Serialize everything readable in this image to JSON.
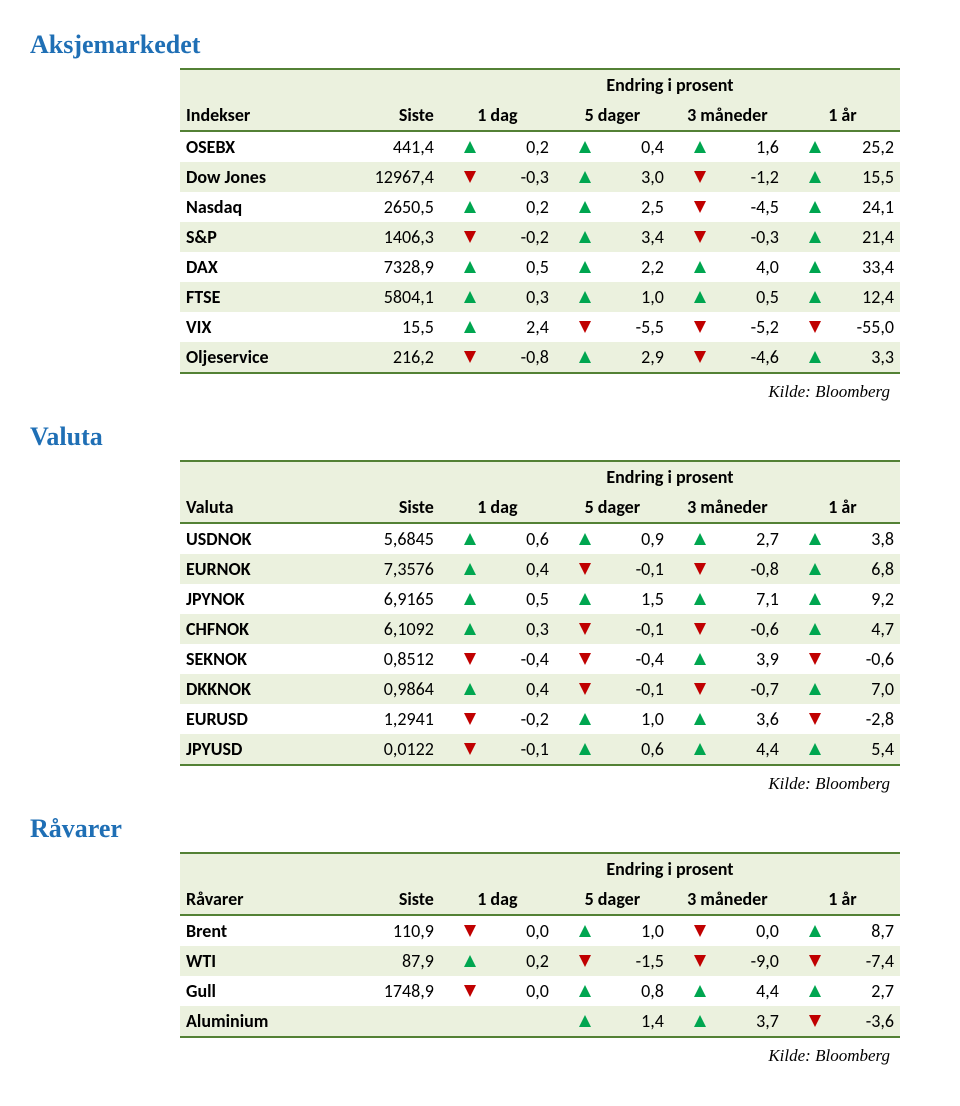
{
  "sections": [
    {
      "title": "Aksjemarkedet",
      "group_header": "Endring i prosent",
      "header_name": "Indekser",
      "header_siste": "Siste",
      "columns": [
        "1 dag",
        "5 dager",
        "3 måneder",
        "1 år"
      ],
      "rows": [
        {
          "name": "OSEBX",
          "siste": "441,4",
          "cells": [
            {
              "dir": "up",
              "val": "0,2"
            },
            {
              "dir": "up",
              "val": "0,4"
            },
            {
              "dir": "up",
              "val": "1,6"
            },
            {
              "dir": "up",
              "val": "25,2"
            }
          ]
        },
        {
          "name": "Dow Jones",
          "siste": "12967,4",
          "cells": [
            {
              "dir": "down",
              "val": "-0,3"
            },
            {
              "dir": "up",
              "val": "3,0"
            },
            {
              "dir": "down",
              "val": "-1,2"
            },
            {
              "dir": "up",
              "val": "15,5"
            }
          ]
        },
        {
          "name": "Nasdaq",
          "siste": "2650,5",
          "cells": [
            {
              "dir": "up",
              "val": "0,2"
            },
            {
              "dir": "up",
              "val": "2,5"
            },
            {
              "dir": "down",
              "val": "-4,5"
            },
            {
              "dir": "up",
              "val": "24,1"
            }
          ]
        },
        {
          "name": "S&P",
          "siste": "1406,3",
          "cells": [
            {
              "dir": "down",
              "val": "-0,2"
            },
            {
              "dir": "up",
              "val": "3,4"
            },
            {
              "dir": "down",
              "val": "-0,3"
            },
            {
              "dir": "up",
              "val": "21,4"
            }
          ]
        },
        {
          "name": "DAX",
          "siste": "7328,9",
          "cells": [
            {
              "dir": "up",
              "val": "0,5"
            },
            {
              "dir": "up",
              "val": "2,2"
            },
            {
              "dir": "up",
              "val": "4,0"
            },
            {
              "dir": "up",
              "val": "33,4"
            }
          ]
        },
        {
          "name": "FTSE",
          "siste": "5804,1",
          "cells": [
            {
              "dir": "up",
              "val": "0,3"
            },
            {
              "dir": "up",
              "val": "1,0"
            },
            {
              "dir": "up",
              "val": "0,5"
            },
            {
              "dir": "up",
              "val": "12,4"
            }
          ]
        },
        {
          "name": "VIX",
          "siste": "15,5",
          "cells": [
            {
              "dir": "up",
              "val": "2,4"
            },
            {
              "dir": "down",
              "val": "-5,5"
            },
            {
              "dir": "down",
              "val": "-5,2"
            },
            {
              "dir": "down",
              "val": "-55,0"
            }
          ]
        },
        {
          "name": "Oljeservice",
          "siste": "216,2",
          "cells": [
            {
              "dir": "down",
              "val": "-0,8"
            },
            {
              "dir": "up",
              "val": "2,9"
            },
            {
              "dir": "down",
              "val": "-4,6"
            },
            {
              "dir": "up",
              "val": "3,3"
            }
          ]
        }
      ],
      "source": "Kilde: Bloomberg"
    },
    {
      "title": "Valuta",
      "group_header": "Endring i prosent",
      "header_name": "Valuta",
      "header_siste": "Siste",
      "columns": [
        "1 dag",
        "5 dager",
        "3 måneder",
        "1 år"
      ],
      "rows": [
        {
          "name": "USDNOK",
          "siste": "5,6845",
          "cells": [
            {
              "dir": "up",
              "val": "0,6"
            },
            {
              "dir": "up",
              "val": "0,9"
            },
            {
              "dir": "up",
              "val": "2,7"
            },
            {
              "dir": "up",
              "val": "3,8"
            }
          ]
        },
        {
          "name": "EURNOK",
          "siste": "7,3576",
          "cells": [
            {
              "dir": "up",
              "val": "0,4"
            },
            {
              "dir": "down",
              "val": "-0,1"
            },
            {
              "dir": "down",
              "val": "-0,8"
            },
            {
              "dir": "up",
              "val": "6,8"
            }
          ]
        },
        {
          "name": "JPYNOK",
          "siste": "6,9165",
          "cells": [
            {
              "dir": "up",
              "val": "0,5"
            },
            {
              "dir": "up",
              "val": "1,5"
            },
            {
              "dir": "up",
              "val": "7,1"
            },
            {
              "dir": "up",
              "val": "9,2"
            }
          ]
        },
        {
          "name": "CHFNOK",
          "siste": "6,1092",
          "cells": [
            {
              "dir": "up",
              "val": "0,3"
            },
            {
              "dir": "down",
              "val": "-0,1"
            },
            {
              "dir": "down",
              "val": "-0,6"
            },
            {
              "dir": "up",
              "val": "4,7"
            }
          ]
        },
        {
          "name": "SEKNOK",
          "siste": "0,8512",
          "cells": [
            {
              "dir": "down",
              "val": "-0,4"
            },
            {
              "dir": "down",
              "val": "-0,4"
            },
            {
              "dir": "up",
              "val": "3,9"
            },
            {
              "dir": "down",
              "val": "-0,6"
            }
          ]
        },
        {
          "name": "DKKNOK",
          "siste": "0,9864",
          "cells": [
            {
              "dir": "up",
              "val": "0,4"
            },
            {
              "dir": "down",
              "val": "-0,1"
            },
            {
              "dir": "down",
              "val": "-0,7"
            },
            {
              "dir": "up",
              "val": "7,0"
            }
          ]
        },
        {
          "name": "EURUSD",
          "siste": "1,2941",
          "cells": [
            {
              "dir": "down",
              "val": "-0,2"
            },
            {
              "dir": "up",
              "val": "1,0"
            },
            {
              "dir": "up",
              "val": "3,6"
            },
            {
              "dir": "down",
              "val": "-2,8"
            }
          ]
        },
        {
          "name": "JPYUSD",
          "siste": "0,0122",
          "cells": [
            {
              "dir": "down",
              "val": "-0,1"
            },
            {
              "dir": "up",
              "val": "0,6"
            },
            {
              "dir": "up",
              "val": "4,4"
            },
            {
              "dir": "up",
              "val": "5,4"
            }
          ]
        }
      ],
      "source": "Kilde: Bloomberg"
    },
    {
      "title": "Råvarer",
      "group_header": "Endring i prosent",
      "header_name": "Råvarer",
      "header_siste": "Siste",
      "columns": [
        "1 dag",
        "5 dager",
        "3 måneder",
        "1 år"
      ],
      "rows": [
        {
          "name": "Brent",
          "siste": "110,9",
          "cells": [
            {
              "dir": "down",
              "val": "0,0"
            },
            {
              "dir": "up",
              "val": "1,0"
            },
            {
              "dir": "down",
              "val": "0,0"
            },
            {
              "dir": "up",
              "val": "8,7"
            }
          ]
        },
        {
          "name": "WTI",
          "siste": "87,9",
          "cells": [
            {
              "dir": "up",
              "val": "0,2"
            },
            {
              "dir": "down",
              "val": "-1,5"
            },
            {
              "dir": "down",
              "val": "-9,0"
            },
            {
              "dir": "down",
              "val": "-7,4"
            }
          ]
        },
        {
          "name": "Gull",
          "siste": "1748,9",
          "cells": [
            {
              "dir": "down",
              "val": "0,0"
            },
            {
              "dir": "up",
              "val": "0,8"
            },
            {
              "dir": "up",
              "val": "4,4"
            },
            {
              "dir": "up",
              "val": "2,7"
            }
          ]
        },
        {
          "name": "Aluminium",
          "siste": "",
          "cells": [
            {
              "dir": "up",
              "val": "1,4"
            },
            {
              "dir": "up",
              "val": "3,7"
            },
            {
              "dir": "down",
              "val": "-3,6"
            }
          ],
          "offset": 1
        }
      ],
      "source": "Kilde: Bloomberg"
    }
  ]
}
